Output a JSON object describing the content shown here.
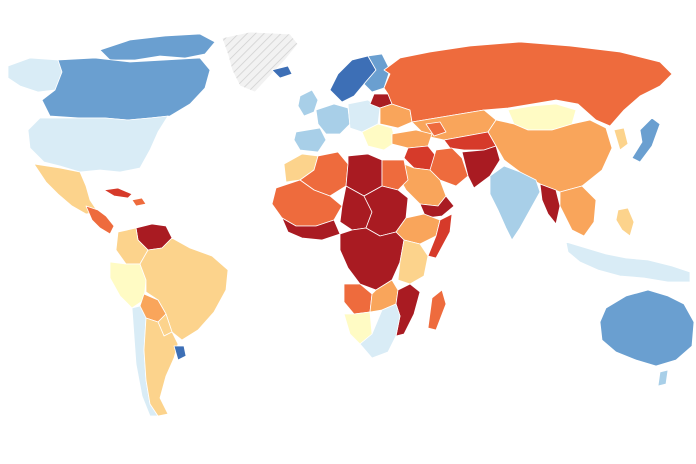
{
  "map": {
    "type": "choropleth-world",
    "colors": {
      "no_data": "#e6e6e6",
      "scale": [
        "#3d6fb6",
        "#6a9fd0",
        "#a8cfe8",
        "#d9ecf6",
        "#fffbc4",
        "#fcd38c",
        "#f9a55b",
        "#ee6b3d",
        "#d63a2a",
        "#a91b22"
      ]
    },
    "regions": [
      {
        "name": "greenland",
        "level": -1
      },
      {
        "name": "canada",
        "level": 1
      },
      {
        "name": "alaska",
        "level": 3
      },
      {
        "name": "canadian-arctic",
        "level": 1
      },
      {
        "name": "usa",
        "level": 3
      },
      {
        "name": "mexico",
        "level": 5
      },
      {
        "name": "central-america",
        "level": 7
      },
      {
        "name": "cuba",
        "level": 8
      },
      {
        "name": "hispaniola",
        "level": 7
      },
      {
        "name": "venezuela",
        "level": 9
      },
      {
        "name": "colombia",
        "level": 5
      },
      {
        "name": "brazil",
        "level": 5
      },
      {
        "name": "peru-bolivia",
        "level": 4
      },
      {
        "name": "bolivia",
        "level": 6
      },
      {
        "name": "paraguay",
        "level": 5
      },
      {
        "name": "argentina",
        "level": 5
      },
      {
        "name": "chile",
        "level": 3
      },
      {
        "name": "uruguay",
        "level": 0
      },
      {
        "name": "iceland",
        "level": 0
      },
      {
        "name": "scandinavia",
        "level": 0
      },
      {
        "name": "finland",
        "level": 1
      },
      {
        "name": "uk-ireland",
        "level": 2
      },
      {
        "name": "western-europe",
        "level": 2
      },
      {
        "name": "iberia",
        "level": 2
      },
      {
        "name": "central-europe",
        "level": 3
      },
      {
        "name": "eastern-europe",
        "level": 4
      },
      {
        "name": "belarus",
        "level": 9
      },
      {
        "name": "ukraine",
        "level": 6
      },
      {
        "name": "russia",
        "level": 7
      },
      {
        "name": "turkey",
        "level": 6
      },
      {
        "name": "caucasus",
        "level": 7
      },
      {
        "name": "kazakhstan",
        "level": 6
      },
      {
        "name": "mongolia",
        "level": 4
      },
      {
        "name": "china",
        "level": 6
      },
      {
        "name": "korea",
        "level": 5
      },
      {
        "name": "japan",
        "level": 1
      },
      {
        "name": "central-asia",
        "level": 8
      },
      {
        "name": "afghanistan-pakistan",
        "level": 9
      },
      {
        "name": "iran",
        "level": 7
      },
      {
        "name": "iraq-syria",
        "level": 8
      },
      {
        "name": "saudi-arabia",
        "level": 6
      },
      {
        "name": "yemen",
        "level": 9
      },
      {
        "name": "india",
        "level": 2
      },
      {
        "name": "myanmar",
        "level": 9
      },
      {
        "name": "indochina",
        "level": 6
      },
      {
        "name": "indonesia",
        "level": 3
      },
      {
        "name": "philippines",
        "level": 5
      },
      {
        "name": "australia",
        "level": 1
      },
      {
        "name": "new-zealand",
        "level": 2
      },
      {
        "name": "morocco",
        "level": 5
      },
      {
        "name": "algeria",
        "level": 7
      },
      {
        "name": "libya",
        "level": 9
      },
      {
        "name": "egypt",
        "level": 7
      },
      {
        "name": "sudan",
        "level": 9
      },
      {
        "name": "west-africa",
        "level": 7
      },
      {
        "name": "west-africa-coast",
        "level": 9
      },
      {
        "name": "chad",
        "level": 9
      },
      {
        "name": "ethiopia",
        "level": 6
      },
      {
        "name": "somalia",
        "level": 8
      },
      {
        "name": "central-africa",
        "level": 9
      },
      {
        "name": "east-africa",
        "level": 5
      },
      {
        "name": "angola",
        "level": 7
      },
      {
        "name": "zambia",
        "level": 6
      },
      {
        "name": "mozambique",
        "level": 9
      },
      {
        "name": "namibia",
        "level": 4
      },
      {
        "name": "south-africa",
        "level": 3
      },
      {
        "name": "madagascar",
        "level": 7
      }
    ]
  }
}
